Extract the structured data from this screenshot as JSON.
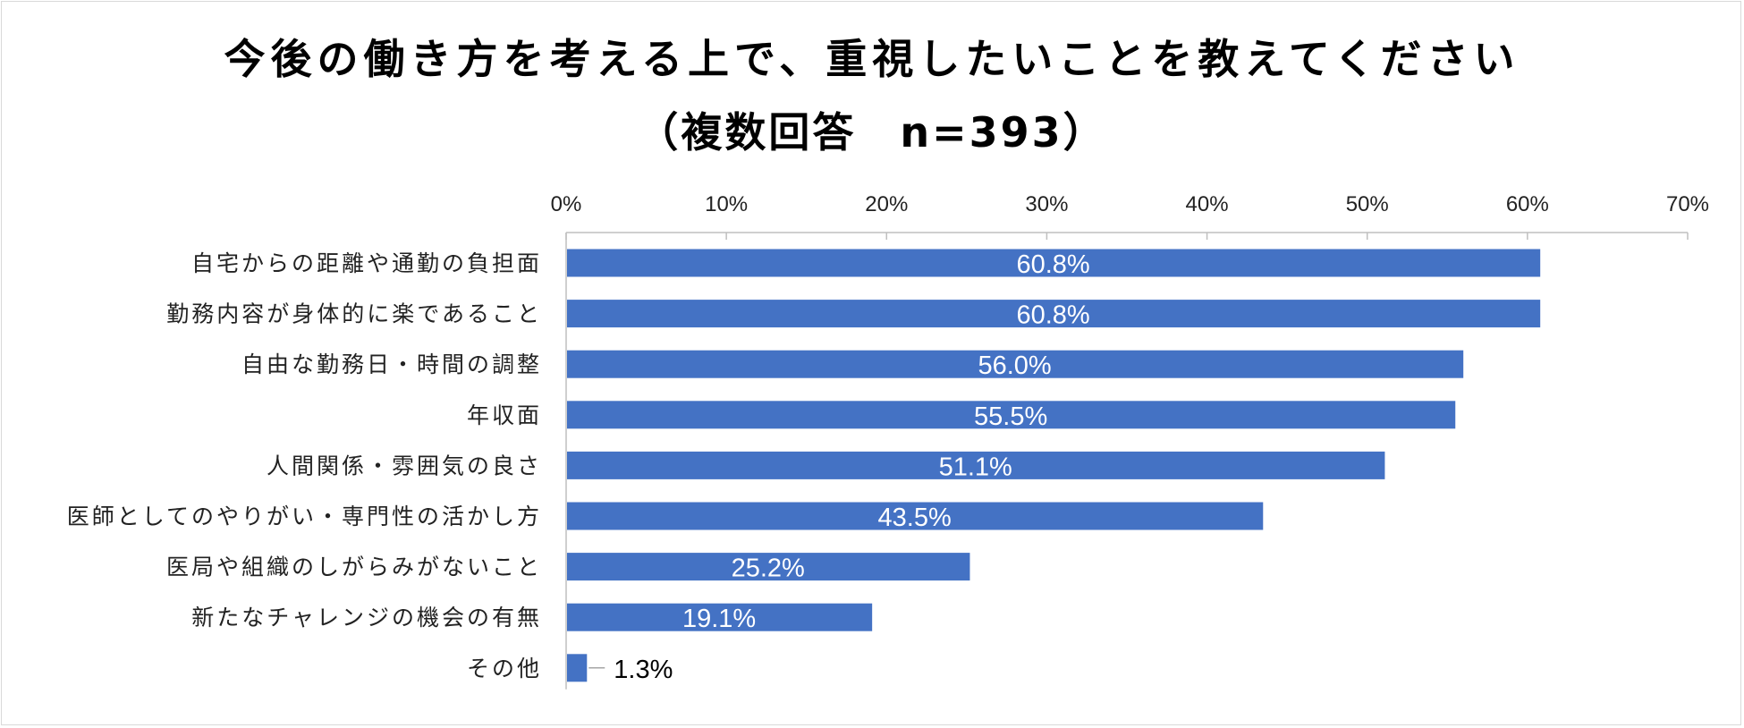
{
  "title_line1": "今後の働き方を考える上で、重視したいことを教えてください",
  "title_line2": "（複数回答　n=393）",
  "colors": {
    "bar": "#4472C4",
    "label_inside": "#ffffff",
    "label_outside": "#000000",
    "axis": "#bfbfbf"
  },
  "chart_data": {
    "type": "bar",
    "orientation": "horizontal",
    "title": "今後の働き方を考える上で、重視したいことを教えてください（複数回答　n=393）",
    "categories": [
      "自宅からの距離や通勤の負担面",
      "勤務内容が身体的に楽であること",
      "自由な勤務日・時間の調整",
      "年収面",
      "人間関係・雰囲気の良さ",
      "医師としてのやりがい・専門性の活かし方",
      "医局や組織のしがらみがないこと",
      "新たなチャレンジの機会の有無",
      "その他"
    ],
    "values": [
      60.8,
      60.8,
      56.0,
      55.5,
      51.1,
      43.5,
      25.2,
      19.1,
      1.3
    ],
    "value_labels": [
      "60.8%",
      "60.8%",
      "56.0%",
      "55.5%",
      "51.1%",
      "43.5%",
      "25.2%",
      "19.1%",
      "1.3%"
    ],
    "xlim": [
      0,
      70
    ],
    "x_ticks": [
      "0%",
      "10%",
      "20%",
      "30%",
      "40%",
      "50%",
      "60%",
      "70%"
    ],
    "grid": false,
    "legend": "none"
  }
}
